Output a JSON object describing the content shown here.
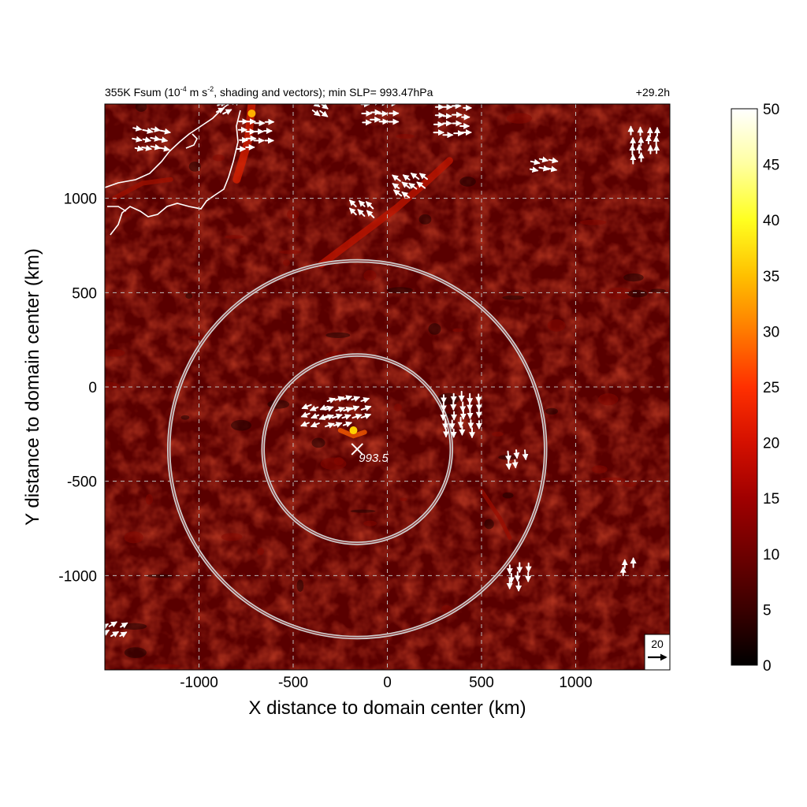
{
  "chart_data": {
    "type": "heatmap",
    "title": {
      "pre": "355K Fsum (10",
      "sup1": "-4",
      "mid": " m s",
      "sup2": "-2",
      "post": ", shading and vectors); min SLP= 993.47hPa"
    },
    "time_label": "+29.2h",
    "xlabel": "X distance to domain center (km)",
    "ylabel": "Y distance to domain center (km)",
    "xlim": [
      -1500,
      1500
    ],
    "ylim": [
      -1500,
      1500
    ],
    "xticks": [
      -1000,
      -500,
      0,
      500,
      1000
    ],
    "xtick_labels": [
      "-1000",
      "-500",
      "0",
      "500",
      "1000"
    ],
    "yticks": [
      -1000,
      -500,
      0,
      500,
      1000
    ],
    "ytick_labels": [
      "-1000",
      "-500",
      "0",
      "500",
      "1000"
    ],
    "grid": true,
    "colorbar": {
      "min": 0,
      "max": 50,
      "ticks": [
        0,
        5,
        10,
        15,
        20,
        25,
        30,
        35,
        40,
        45,
        50
      ],
      "tick_labels": [
        "0",
        "5",
        "10",
        "15",
        "20",
        "25",
        "30",
        "35",
        "40",
        "45",
        "50"
      ],
      "colors": [
        "#000000",
        "#3a0000",
        "#6e0000",
        "#a00000",
        "#d41000",
        "#ff3000",
        "#ff7a00",
        "#ffc000",
        "#ffff20",
        "#ffffa0",
        "#ffffff"
      ]
    },
    "center": {
      "x": -160,
      "y": -330,
      "label": "993.5"
    },
    "circles_km": [
      500,
      1000
    ],
    "reference_vector": {
      "label": "20"
    },
    "vector_clusters": [
      {
        "x": -1230,
        "y": 1270,
        "u": 1,
        "v": -0.2,
        "n": 12
      },
      {
        "x": -680,
        "y": 1310,
        "u": 1,
        "v": 0,
        "n": 14
      },
      {
        "x": -820,
        "y": 1440,
        "u": 1,
        "v": 0.5,
        "n": 5
      },
      {
        "x": -330,
        "y": 1450,
        "u": 0.8,
        "v": -0.6,
        "n": 4
      },
      {
        "x": -20,
        "y": 1410,
        "u": 1,
        "v": 0,
        "n": 12
      },
      {
        "x": 370,
        "y": 1390,
        "u": 1,
        "v": 0,
        "n": 16
      },
      {
        "x": 850,
        "y": 1130,
        "u": 1,
        "v": -0.2,
        "n": 6
      },
      {
        "x": 1390,
        "y": 1260,
        "u": 0,
        "v": 1,
        "n": 14
      },
      {
        "x": 140,
        "y": 1020,
        "u": -0.8,
        "v": 0.6,
        "n": 10
      },
      {
        "x": -120,
        "y": 900,
        "u": -0.7,
        "v": 0.7,
        "n": 6
      },
      {
        "x": -190,
        "y": -180,
        "u": 0.9,
        "v": 0.3,
        "n": 18
      },
      {
        "x": -360,
        "y": -180,
        "u": -1,
        "v": -0.4,
        "n": 8
      },
      {
        "x": 420,
        "y": -170,
        "u": 0,
        "v": -1,
        "n": 24
      },
      {
        "x": 710,
        "y": -430,
        "u": 0.1,
        "v": -1,
        "n": 5
      },
      {
        "x": 720,
        "y": -1030,
        "u": 0,
        "v": -1,
        "n": 8
      },
      {
        "x": -1430,
        "y": -1330,
        "u": 1,
        "v": 0.6,
        "n": 6
      },
      {
        "x": 1300,
        "y": -980,
        "u": 0,
        "v": 1,
        "n": 3
      }
    ]
  }
}
